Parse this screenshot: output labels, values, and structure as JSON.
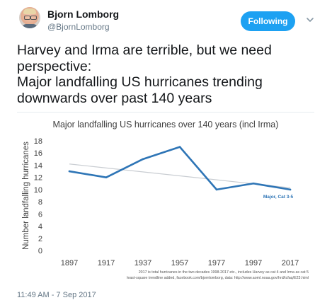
{
  "author": {
    "name": "Bjorn Lomborg",
    "handle": "@BjornLomborg",
    "avatar_icon": "avatar-icon"
  },
  "follow_button": {
    "label": "Following",
    "color": "#1da1f2"
  },
  "more_icon": "chevron-down-icon",
  "tweet": {
    "text": "Harvey and Irma are terrible, but we need perspective:\nMajor landfalling US hurricanes trending downwards over past 140 years",
    "timestamp": "11:49 AM - 7 Sep 2017"
  },
  "chart_data": {
    "type": "line",
    "title": "Major landfalling US hurricanes over 140 years (incl Irma)",
    "xlabel": "",
    "ylabel": "Number landfalling hurricanes",
    "x": [
      "1897",
      "1917",
      "1937",
      "1957",
      "1977",
      "1997",
      "2017"
    ],
    "ylim": [
      0,
      18
    ],
    "yticks": [
      "0",
      "2",
      "4",
      "6",
      "8",
      "10",
      "12",
      "14",
      "16",
      "18"
    ],
    "series": [
      {
        "name": "Major, Cat 3-5",
        "values": [
          13,
          12,
          15,
          17,
          10,
          11,
          10
        ],
        "color": "#2e75b6"
      }
    ],
    "trendline": {
      "start": 14.2,
      "end": 10.3,
      "color": "#c9cdd2"
    },
    "footnote_lines": [
      "2017 is total hurricanes in the two decades 1998-2017 etc., includes Harvey as cat 4 and Irma as cat 5",
      "least-square trendline added, facebook.com/bjornlomborg, data: http://www.aoml.noaa.gov/hrd/tcfaq/E23.html"
    ],
    "grid": false,
    "legend": "inline-right"
  }
}
